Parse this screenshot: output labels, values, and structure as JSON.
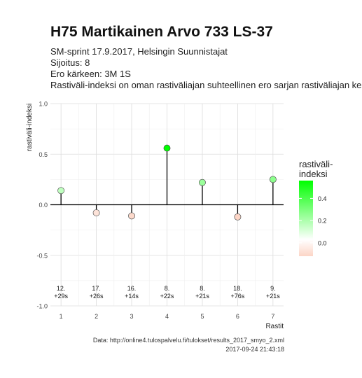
{
  "header": {
    "title": "H75 Martikainen Arvo 733 LS-37",
    "event": "SM-sprint 17.9.2017, Helsingin Suunnistajat",
    "placement": "Sijoitus: 8",
    "gap": "Ero kärkeen: 3M 1S",
    "description": "Rastiväli-indeksi on oman rastiväliajan suhteellinen ero sarjan rastiväliajan kes"
  },
  "footer": {
    "source": "Data: http://online4.tulospalvelu.fi/tulokset/results_2017_smyo_2.xml",
    "timestamp": "2017-09-24 21:43:18"
  },
  "chart_data": {
    "type": "lollipop",
    "xlabel": "Rastit",
    "ylabel": "rastiväli-indeksi",
    "x": [
      1,
      2,
      3,
      4,
      5,
      6,
      7
    ],
    "values": [
      0.14,
      -0.08,
      -0.11,
      0.56,
      0.22,
      -0.12,
      0.25
    ],
    "point_labels_top": [
      "12.",
      "17.",
      "16.",
      "8.",
      "8.",
      "18.",
      "9."
    ],
    "point_labels_bottom": [
      "+29s",
      "+26s",
      "+14s",
      "+22s",
      "+21s",
      "+76s",
      "+21s"
    ],
    "ylim": [
      -1.0,
      1.0
    ],
    "yticks": [
      "1.0",
      "0.5",
      "0.0",
      "-0.5",
      "-1.0"
    ],
    "grid": true,
    "legend": {
      "title_line1": "rastiväli-",
      "title_line2": "indeksi",
      "ticks": [
        "0.4",
        "0.2",
        "0.0"
      ],
      "placement": "right",
      "color_low": "#fcd5c6",
      "color_mid": "#ffffff",
      "color_high": "#00ff00"
    }
  }
}
